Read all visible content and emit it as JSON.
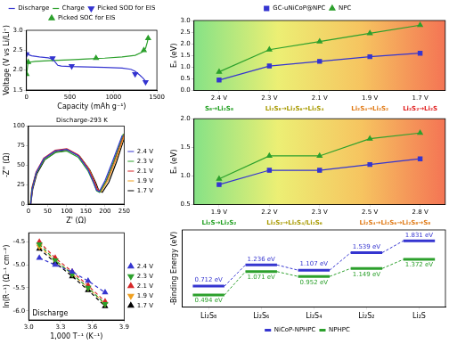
{
  "chart_data": [
    {
      "type": "line",
      "xlabel": "Capacity (mAh g⁻¹)",
      "ylabel": "Voltage (V vs Li/Li⁺)",
      "xlim": [
        0,
        1500
      ],
      "xticks": [
        0,
        500,
        1000,
        1500
      ],
      "ylim": [
        1.5,
        3
      ],
      "yticks": [
        1.5,
        {
          "value": 2,
          "label": "2.0"
        },
        2.5,
        {
          "value": 3,
          "label": "3.0"
        }
      ],
      "grid": false,
      "legend": "top",
      "series": [
        {
          "name": "Discharge",
          "color": "#3535d0",
          "x": [
            0,
            10,
            30,
            60,
            150,
            250,
            300,
            330,
            360,
            400,
            500,
            700,
            900,
            1100,
            1200,
            1250,
            1300,
            1340,
            1370,
            1385
          ],
          "values": [
            2.45,
            2.42,
            2.38,
            2.36,
            2.33,
            2.31,
            2.28,
            2.2,
            2.12,
            2.1,
            2.09,
            2.08,
            2.07,
            2.05,
            2.02,
            1.97,
            1.88,
            1.8,
            1.72,
            1.68
          ]
        },
        {
          "name": "Charge",
          "color": "#2ca02c",
          "x": [
            0,
            5,
            15,
            40,
            100,
            300,
            500,
            700,
            900,
            1100,
            1250,
            1330,
            1370,
            1390,
            1400
          ],
          "values": [
            1.85,
            1.95,
            2.15,
            2.2,
            2.22,
            2.24,
            2.26,
            2.28,
            2.3,
            2.33,
            2.37,
            2.45,
            2.55,
            2.7,
            2.8
          ]
        },
        {
          "name": "Picked SOD for EIS",
          "color": "#3535d0",
          "type": "scatter",
          "marker": "triangle_down",
          "x": [
            0,
            300,
            520,
            1250,
            1370
          ],
          "values": [
            2.4,
            2.3,
            2.1,
            1.9,
            1.7
          ]
        },
        {
          "name": "Picked SOC for EIS",
          "color": "#2ca02c",
          "type": "scatter",
          "marker": "triangle",
          "x": [
            0,
            20,
            800,
            1350,
            1400
          ],
          "values": [
            1.9,
            2.2,
            2.3,
            2.5,
            2.8
          ]
        }
      ]
    },
    {
      "type": "line",
      "title": "Discharge-293 K",
      "xlabel": "Z' (Ω)",
      "ylabel": "-Z'' (Ω)",
      "xlim": [
        0,
        250
      ],
      "xticks": [
        0,
        50,
        100,
        150,
        200,
        250
      ],
      "ylim": [
        0,
        100
      ],
      "yticks": [
        0,
        25,
        50,
        75,
        100
      ],
      "grid": false,
      "legend": "right",
      "series": [
        {
          "name": "2.4 V",
          "color": "#3535d0",
          "x": [
            6,
            10,
            20,
            40,
            70,
            100,
            130,
            155,
            170,
            178,
            185,
            200,
            220,
            245
          ],
          "values": [
            0,
            20,
            40,
            58,
            68,
            70,
            62,
            45,
            28,
            18,
            16,
            30,
            55,
            88
          ]
        },
        {
          "name": "2.3 V",
          "color": "#2ca02c",
          "x": [
            5,
            9,
            19,
            40,
            70,
            100,
            130,
            155,
            170,
            178,
            186,
            202,
            222,
            248
          ],
          "values": [
            0,
            19,
            38,
            56,
            66,
            68,
            60,
            43,
            27,
            17,
            15,
            29,
            54,
            90
          ]
        },
        {
          "name": "2.1 V",
          "color": "#d62728",
          "x": [
            5,
            9,
            20,
            40,
            70,
            100,
            130,
            156,
            172,
            180,
            188,
            205,
            225,
            250
          ],
          "values": [
            0,
            21,
            41,
            59,
            69,
            71,
            63,
            46,
            29,
            19,
            17,
            31,
            56,
            90
          ]
        },
        {
          "name": "1.9 V",
          "color": "#f0a020",
          "x": [
            6,
            10,
            21,
            42,
            72,
            102,
            132,
            158,
            173,
            181,
            190,
            207,
            228,
            250
          ],
          "values": [
            0,
            20,
            40,
            58,
            68,
            70,
            62,
            45,
            28,
            18,
            16,
            30,
            56,
            87
          ]
        },
        {
          "name": "1.7 V",
          "color": "#000000",
          "x": [
            6,
            11,
            22,
            43,
            73,
            104,
            134,
            160,
            176,
            184,
            193,
            210,
            230,
            250
          ],
          "values": [
            0,
            19,
            39,
            57,
            67,
            69,
            61,
            44,
            27,
            17,
            15,
            28,
            54,
            84
          ]
        }
      ]
    },
    {
      "type": "scatter",
      "xlabel": "1,000 T⁻¹ (K⁻¹)",
      "ylabel": "ln(R⁻¹) (Ω⁻¹ cm⁻²)",
      "annotations": [
        "Discharge"
      ],
      "xlim": [
        3,
        3.9
      ],
      "xticks": [
        {
          "value": 3,
          "label": "3.0"
        },
        3.3,
        3.6,
        3.9
      ],
      "ylim": [
        -6.2,
        -4.3
      ],
      "yticks": [
        {
          "value": -6,
          "label": "-6.0"
        },
        -5.5,
        {
          "value": -5,
          "label": "-5.0"
        },
        -4.5
      ],
      "grid": false,
      "legend": "right",
      "series": [
        {
          "name": "2.4 V",
          "color": "#3535d0",
          "marker": "triangle",
          "line_style": "dashed",
          "x": [
            3.1,
            3.25,
            3.41,
            3.56,
            3.72
          ],
          "values": [
            -4.85,
            -5.0,
            -5.15,
            -5.35,
            -5.6
          ]
        },
        {
          "name": "2.3 V",
          "color": "#2ca02c",
          "marker": "triangle_down",
          "line_style": "dashed",
          "x": [
            3.1,
            3.25,
            3.41,
            3.56,
            3.72
          ],
          "values": [
            -4.55,
            -4.9,
            -5.2,
            -5.5,
            -5.85
          ]
        },
        {
          "name": "2.1 V",
          "color": "#d62728",
          "marker": "triangle",
          "line_style": "dashed",
          "x": [
            3.1,
            3.25,
            3.41,
            3.56,
            3.72
          ],
          "values": [
            -4.5,
            -4.85,
            -5.15,
            -5.45,
            -5.8
          ]
        },
        {
          "name": "1.9 V",
          "color": "#f0a020",
          "marker": "triangle_down",
          "line_style": "dashed",
          "x": [
            3.1,
            3.25,
            3.41,
            3.56,
            3.72
          ],
          "values": [
            -4.6,
            -4.9,
            -5.2,
            -5.5,
            -5.85
          ]
        },
        {
          "name": "1.7 V",
          "color": "#000000",
          "marker": "triangle",
          "line_style": "dashed",
          "x": [
            3.1,
            3.25,
            3.41,
            3.56,
            3.72
          ],
          "values": [
            -4.65,
            -4.95,
            -5.25,
            -5.55,
            -5.9
          ]
        }
      ]
    },
    {
      "type": "line",
      "ylabel": "Eₐ (eV)",
      "categories": [
        "2.4 V",
        "2.3 V",
        "2.1 V",
        "1.9 V",
        "1.7 V"
      ],
      "ylim": [
        0,
        3
      ],
      "yticks": [
        {
          "value": 0,
          "label": "0.0"
        },
        0.5,
        {
          "value": 1,
          "label": "1.0"
        },
        1.5,
        {
          "value": 2,
          "label": "2.0"
        },
        2.5,
        {
          "value": 3,
          "label": "3.0"
        }
      ],
      "grid": false,
      "legend": "top",
      "regions": [
        {
          "label": "S₈→Li₂S₈",
          "categories": [
            "2.4 V"
          ]
        },
        {
          "label": "Li₂S₈→Li₂S₆→Li₂S₄",
          "categories": [
            "2.3 V",
            "2.1 V"
          ]
        },
        {
          "label": "Li₂S₄→Li₂S₂",
          "categories": [
            "1.9 V"
          ]
        },
        {
          "label": "Li₂S₂→Li₂S",
          "categories": [
            "1.7 V"
          ]
        }
      ],
      "series": [
        {
          "name": "GC-uNiCoP@NPC",
          "color": "#3535d0",
          "marker": "square",
          "values": [
            0.45,
            1.05,
            1.25,
            1.45,
            1.6
          ]
        },
        {
          "name": "NPC",
          "color": "#2ca02c",
          "marker": "triangle",
          "values": [
            0.8,
            1.75,
            2.1,
            2.45,
            2.8
          ]
        }
      ]
    },
    {
      "type": "line",
      "ylabel": "Eₐ (eV)",
      "categories": [
        "1.9 V",
        "2.2 V",
        "2.3 V",
        "2.5 V",
        "2.8 V"
      ],
      "ylim": [
        0.5,
        2
      ],
      "yticks": [
        0.5,
        {
          "value": 1,
          "label": "1.0"
        },
        1.5,
        {
          "value": 2,
          "label": "2.0"
        }
      ],
      "grid": false,
      "regions": [
        {
          "label": "Li₂S→Li₂S₂",
          "categories": [
            "1.9 V"
          ]
        },
        {
          "label": "Li₂S₂→Li₂S₄/Li₂S₆",
          "categories": [
            "2.2 V",
            "2.3 V"
          ]
        },
        {
          "label": "Li₂S₄→Li₂S₆→Li₂S₈→S₈",
          "categories": [
            "2.5 V",
            "2.8 V"
          ]
        }
      ],
      "series": [
        {
          "name": "GC-uNiCoP@NPC",
          "color": "#3535d0",
          "marker": "square",
          "values": [
            0.85,
            1.1,
            1.1,
            1.2,
            1.3
          ]
        },
        {
          "name": "NPC",
          "color": "#2ca02c",
          "marker": "triangle",
          "values": [
            0.95,
            1.35,
            1.35,
            1.65,
            1.75
          ]
        }
      ]
    },
    {
      "type": "energy_level",
      "ylabel": "-Binding Energy (eV)",
      "categories": [
        "Li₂S₈",
        "Li₂S₆",
        "Li₂S₄",
        "Li₂S₂",
        "Li₂S"
      ],
      "ylim": [
        0.2,
        2.1
      ],
      "tick_labels": "x",
      "grid": false,
      "legend": "bottom",
      "data_labels": true,
      "series": [
        {
          "name": "NiCoP-NPHPC",
          "color": "#3535d0",
          "values": [
            0.712,
            1.236,
            1.107,
            1.539,
            1.831
          ],
          "value_labels": [
            "0.712 eV",
            "1.236 eV",
            "1.107 eV",
            "1.539 eV",
            "1.831 eV"
          ]
        },
        {
          "name": "NPHPC",
          "color": "#2ca02c",
          "values": [
            0.494,
            1.071,
            0.952,
            1.149,
            1.372
          ],
          "value_labels": [
            "0.494 eV",
            "1.071 eV",
            "0.952 eV",
            "1.149 eV",
            "1.372 eV"
          ]
        }
      ]
    }
  ]
}
